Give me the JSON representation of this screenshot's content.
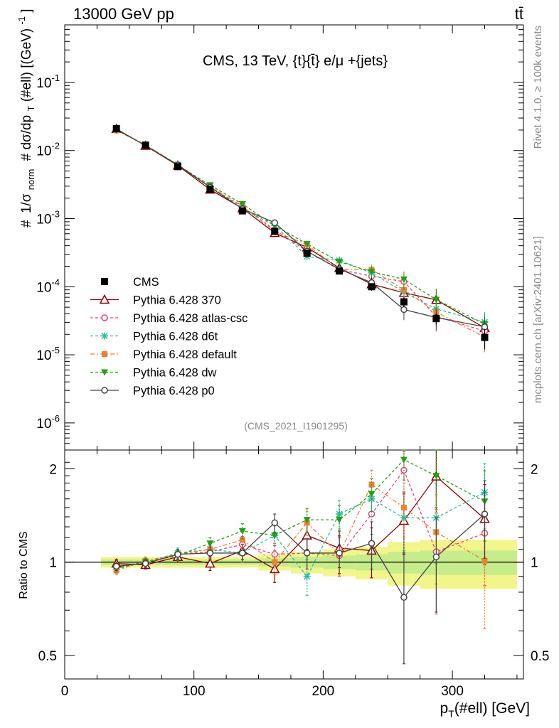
{
  "header": {
    "left": "13000 GeV pp",
    "right": "tt̄"
  },
  "side_labels": {
    "rivet": "Rivet 4.1.0, ≥ 100k events",
    "mcplots": "mcplots.cern.ch [arXiv:2401.10621]"
  },
  "chart_data": {
    "type": "line",
    "title": "CMS, 13 TeV, {t}{t̄} e/μ +{jets}",
    "watermark": "(CMS_2021_I1901295)",
    "xlabel": "pT(#ell) [GeV]",
    "ylabel": "#1/σnorm #dσ/dpT(#ell) [(GeV)^-1]",
    "ratio_ylabel": "Ratio to CMS",
    "xlim": [
      0,
      355
    ],
    "ylim": [
      4e-07,
      0.7
    ],
    "yscale": "log",
    "ratio_ylim": [
      0.42,
      2.3
    ],
    "x_ticks": [
      "0",
      "100",
      "200",
      "300"
    ],
    "y_ticks": [
      "10^-6",
      "10^-5",
      "10^-4",
      "10^-3",
      "10^-2",
      "10^-1"
    ],
    "ratio_ticks": [
      "0.5",
      "1",
      "2"
    ],
    "x": [
      40,
      62.5,
      87.5,
      112.5,
      137.5,
      162.5,
      187.5,
      212.5,
      237.5,
      262.5,
      287.5,
      325
    ],
    "data": {
      "name": "CMS",
      "values": [
        0.021,
        0.012,
        0.0058,
        0.0027,
        0.0013,
        0.00065,
        0.00031,
        0.00017,
        0.0001,
        6e-05,
        3.4e-05,
        1.8e-05
      ],
      "errors": [
        0.0006,
        0.0003,
        0.00012,
        6e-05,
        3e-05,
        2e-05,
        1e-05,
        1e-05,
        1e-05,
        1e-05,
        6e-06,
        6e-06
      ],
      "ratio_band": [
        0.02,
        0.02,
        0.02,
        0.02,
        0.02,
        0.03,
        0.04,
        0.05,
        0.06,
        0.08,
        0.09,
        0.09
      ]
    },
    "series": [
      {
        "name": "Pythia 6.428 370",
        "color": "#8b0000",
        "marker": "triangle-open",
        "dash": "",
        "ratio": [
          0.99,
          0.98,
          1.04,
          0.99,
          1.09,
          0.95,
          1.22,
          1.11,
          1.09,
          1.36,
          1.89,
          1.38
        ],
        "ratio_err": [
          0.03,
          0.03,
          0.04,
          0.05,
          0.07,
          0.09,
          0.12,
          0.15,
          0.2,
          0.3,
          0.45,
          0.4
        ]
      },
      {
        "name": "Pythia 6.428 atlas-csc",
        "color": "#e8417a",
        "marker": "circle-open",
        "dash": "4,3",
        "ratio": [
          0.97,
          1.0,
          1.06,
          1.08,
          1.14,
          1.06,
          1.07,
          1.05,
          1.43,
          1.98,
          1.08,
          1.24
        ],
        "ratio_err": [
          0.03,
          0.03,
          0.04,
          0.05,
          0.07,
          0.09,
          0.12,
          0.15,
          0.2,
          0.3,
          0.4,
          0.4
        ]
      },
      {
        "name": "Pythia 6.428 d6t",
        "color": "#20c0a0",
        "marker": "star",
        "dash": "4,3",
        "ratio": [
          0.95,
          1.0,
          1.07,
          1.1,
          1.07,
          1.22,
          0.9,
          1.43,
          1.6,
          1.39,
          1.39,
          1.68
        ],
        "ratio_err": [
          0.03,
          0.03,
          0.04,
          0.05,
          0.07,
          0.09,
          0.12,
          0.15,
          0.2,
          0.3,
          0.4,
          0.4
        ]
      },
      {
        "name": "Pythia 6.428 default",
        "color": "#f08030",
        "marker": "square",
        "dash": "6,3,2,3",
        "ratio": [
          0.94,
          1.01,
          1.06,
          1.1,
          1.18,
          1.0,
          1.34,
          1.06,
          1.78,
          1.5,
          1.25,
          1.01
        ],
        "ratio_err": [
          0.03,
          0.03,
          0.04,
          0.05,
          0.07,
          0.09,
          0.12,
          0.15,
          0.2,
          0.3,
          0.4,
          0.4
        ]
      },
      {
        "name": "Pythia 6.428 dw",
        "color": "#22a012",
        "marker": "triangle-down",
        "dash": "4,3",
        "ratio": [
          0.96,
          1.0,
          1.05,
          1.15,
          1.26,
          1.22,
          1.37,
          1.37,
          1.66,
          2.14,
          1.9,
          1.57
        ],
        "ratio_err": [
          0.03,
          0.03,
          0.04,
          0.05,
          0.07,
          0.09,
          0.12,
          0.15,
          0.2,
          0.3,
          0.4,
          0.4
        ]
      },
      {
        "name": "Pythia 6.428 p0",
        "color": "#444444",
        "marker": "circle-open",
        "dash": "",
        "ratio": [
          0.97,
          0.99,
          1.06,
          1.07,
          1.07,
          1.34,
          1.07,
          1.07,
          1.15,
          0.77,
          1.04,
          1.43
        ],
        "ratio_err": [
          0.03,
          0.03,
          0.04,
          0.05,
          0.07,
          0.09,
          0.12,
          0.15,
          0.2,
          0.3,
          0.35,
          0.4
        ]
      }
    ]
  }
}
